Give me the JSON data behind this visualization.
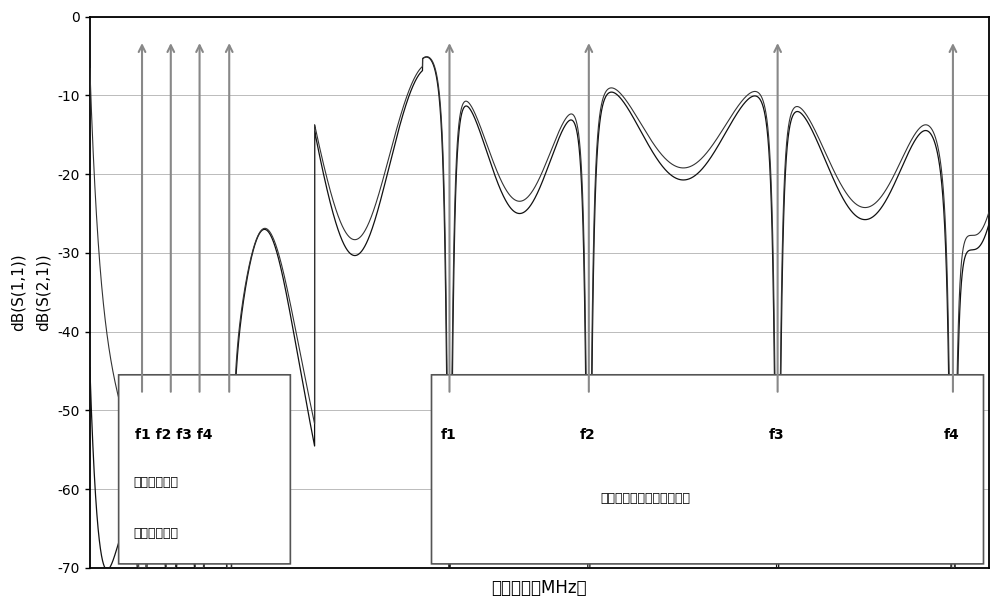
{
  "xlabel": "工作频率（MHz）",
  "ylabel": "dB(S(1,1))\ndB(S(2,1))",
  "ylim": [
    -70,
    0
  ],
  "yticks": [
    0,
    -10,
    -20,
    -30,
    -40,
    -50,
    -60,
    -70
  ],
  "background_color": "#ffffff",
  "grid_color": "#bbbbbb",
  "line_color": "#111111",
  "annotation_color": "#888888",
  "f1a": 0.058,
  "f2a": 0.09,
  "f3a": 0.122,
  "f4a": 0.155,
  "f1b": 0.4,
  "f2b": 0.555,
  "f3b": 0.765,
  "f4b": 0.96,
  "box1_label1": "f1 f2 f3 f4",
  "box1_label2": "基于高通相位",
  "box1_label3": "相消级联电路",
  "box2_label": "基于高通相位相消级联电路",
  "f1b_label": "f1",
  "f2b_label": "f2",
  "f3b_label": "f3",
  "f4b_label": "f4"
}
